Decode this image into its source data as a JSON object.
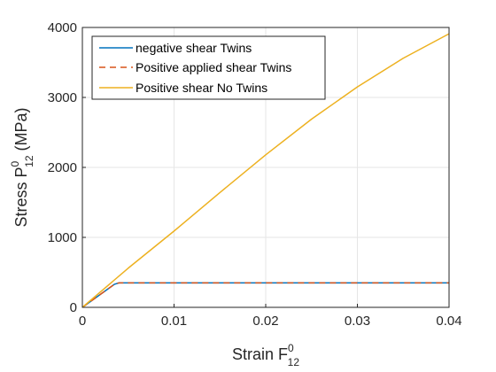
{
  "chart_data": {
    "type": "line",
    "xlabel": {
      "base": "Strain F",
      "sup": "0",
      "sub": "12"
    },
    "ylabel": {
      "base": "Stress P",
      "sup": "0",
      "sub": "12",
      "suffix": " (MPa)"
    },
    "xlim": [
      0,
      0.04
    ],
    "ylim": [
      0,
      4000
    ],
    "xticks": [
      0,
      0.01,
      0.02,
      0.03,
      0.04
    ],
    "yticks": [
      0,
      1000,
      2000,
      3000,
      4000
    ],
    "grid": true,
    "legend_position": "top-left",
    "series": [
      {
        "name": "negative shear Twins",
        "color": "#0072BD",
        "dash": "solid",
        "x": [
          0,
          0.0035,
          0.004,
          0.01,
          0.02,
          0.03,
          0.04
        ],
        "y": [
          0,
          330,
          350,
          350,
          350,
          350,
          350
        ]
      },
      {
        "name": "Positive applied shear Twins",
        "color": "#D95319",
        "dash": "dashed",
        "x": [
          0,
          0.0035,
          0.004,
          0.01,
          0.02,
          0.03,
          0.04
        ],
        "y": [
          0,
          330,
          350,
          350,
          350,
          350,
          350
        ]
      },
      {
        "name": "Positive shear No Twins",
        "color": "#EDB120",
        "dash": "solid",
        "x": [
          0,
          0.005,
          0.01,
          0.015,
          0.02,
          0.025,
          0.03,
          0.035,
          0.04
        ],
        "y": [
          0,
          560,
          1090,
          1640,
          2180,
          2690,
          3150,
          3560,
          3910
        ]
      }
    ]
  }
}
